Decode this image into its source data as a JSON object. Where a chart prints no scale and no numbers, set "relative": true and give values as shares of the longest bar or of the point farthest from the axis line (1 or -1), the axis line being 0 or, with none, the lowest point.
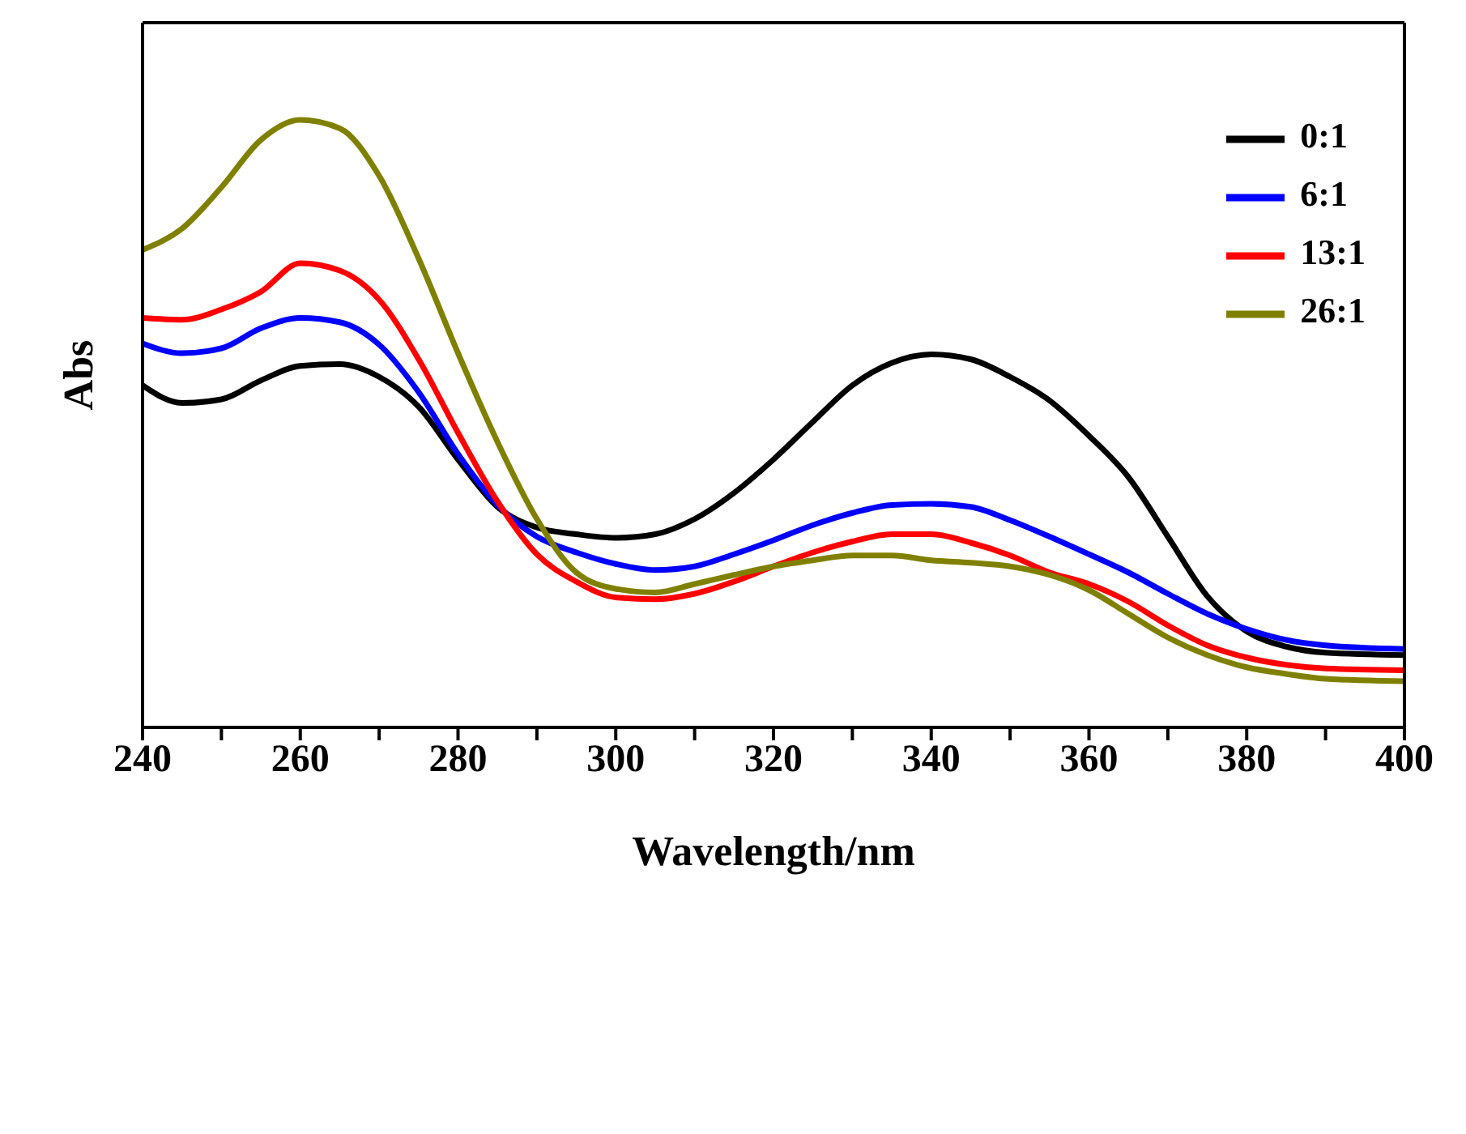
{
  "chart_data": {
    "type": "line",
    "xlabel": "Wavelength/nm",
    "ylabel": "Abs",
    "relative": true,
    "tick_labels": "x",
    "legend": "top right",
    "grid": false,
    "marker": "none",
    "line_style": "solid",
    "xlim": [
      240,
      400
    ],
    "xticks": [
      240,
      {
        "value": 250,
        "label": null
      },
      260,
      {
        "value": 270,
        "label": null
      },
      280,
      {
        "value": 290,
        "label": null
      },
      300,
      {
        "value": 310,
        "label": null
      },
      320,
      {
        "value": 330,
        "label": null
      },
      340,
      {
        "value": 350,
        "label": null
      },
      360,
      {
        "value": 370,
        "label": null
      },
      380,
      {
        "value": 390,
        "label": null
      },
      400
    ],
    "x": [
      240,
      245,
      250,
      255,
      260,
      265,
      270,
      275,
      280,
      285,
      290,
      295,
      300,
      305,
      310,
      315,
      320,
      325,
      330,
      335,
      340,
      345,
      350,
      355,
      360,
      365,
      370,
      375,
      380,
      385,
      390,
      400
    ],
    "series": [
      {
        "name": "0:1",
        "color": "#000000",
        "values": [
          0.563,
          0.534,
          0.54,
          0.571,
          0.595,
          0.598,
          0.577,
          0.528,
          0.441,
          0.363,
          0.329,
          0.318,
          0.312,
          0.318,
          0.343,
          0.386,
          0.441,
          0.503,
          0.563,
          0.6,
          0.614,
          0.606,
          0.577,
          0.538,
          0.48,
          0.412,
          0.314,
          0.216,
          0.158,
          0.133,
          0.123,
          0.119
        ]
      },
      {
        "name": "6:1",
        "color": "#0000ff",
        "values": [
          0.632,
          0.616,
          0.624,
          0.657,
          0.674,
          0.667,
          0.63,
          0.552,
          0.45,
          0.366,
          0.314,
          0.288,
          0.269,
          0.259,
          0.265,
          0.285,
          0.308,
          0.333,
          0.353,
          0.366,
          0.368,
          0.363,
          0.341,
          0.314,
          0.285,
          0.255,
          0.22,
          0.187,
          0.162,
          0.144,
          0.135,
          0.129
        ]
      },
      {
        "name": "13:1",
        "color": "#ff0000",
        "values": [
          0.674,
          0.671,
          0.688,
          0.717,
          0.764,
          0.752,
          0.704,
          0.606,
          0.485,
          0.372,
          0.285,
          0.24,
          0.214,
          0.211,
          0.22,
          0.24,
          0.265,
          0.288,
          0.306,
          0.318,
          0.318,
          0.304,
          0.283,
          0.255,
          0.236,
          0.207,
          0.168,
          0.135,
          0.115,
          0.103,
          0.097,
          0.094
        ]
      },
      {
        "name": "26:1",
        "color": "#808000",
        "values": [
          0.786,
          0.821,
          0.889,
          0.967,
          1,
          0.986,
          0.908,
          0.772,
          0.616,
          0.47,
          0.343,
          0.255,
          0.228,
          0.222,
          0.236,
          0.251,
          0.265,
          0.275,
          0.283,
          0.283,
          0.275,
          0.271,
          0.265,
          0.251,
          0.226,
          0.187,
          0.148,
          0.119,
          0.099,
          0.088,
          0.08,
          0.076
        ]
      }
    ]
  }
}
